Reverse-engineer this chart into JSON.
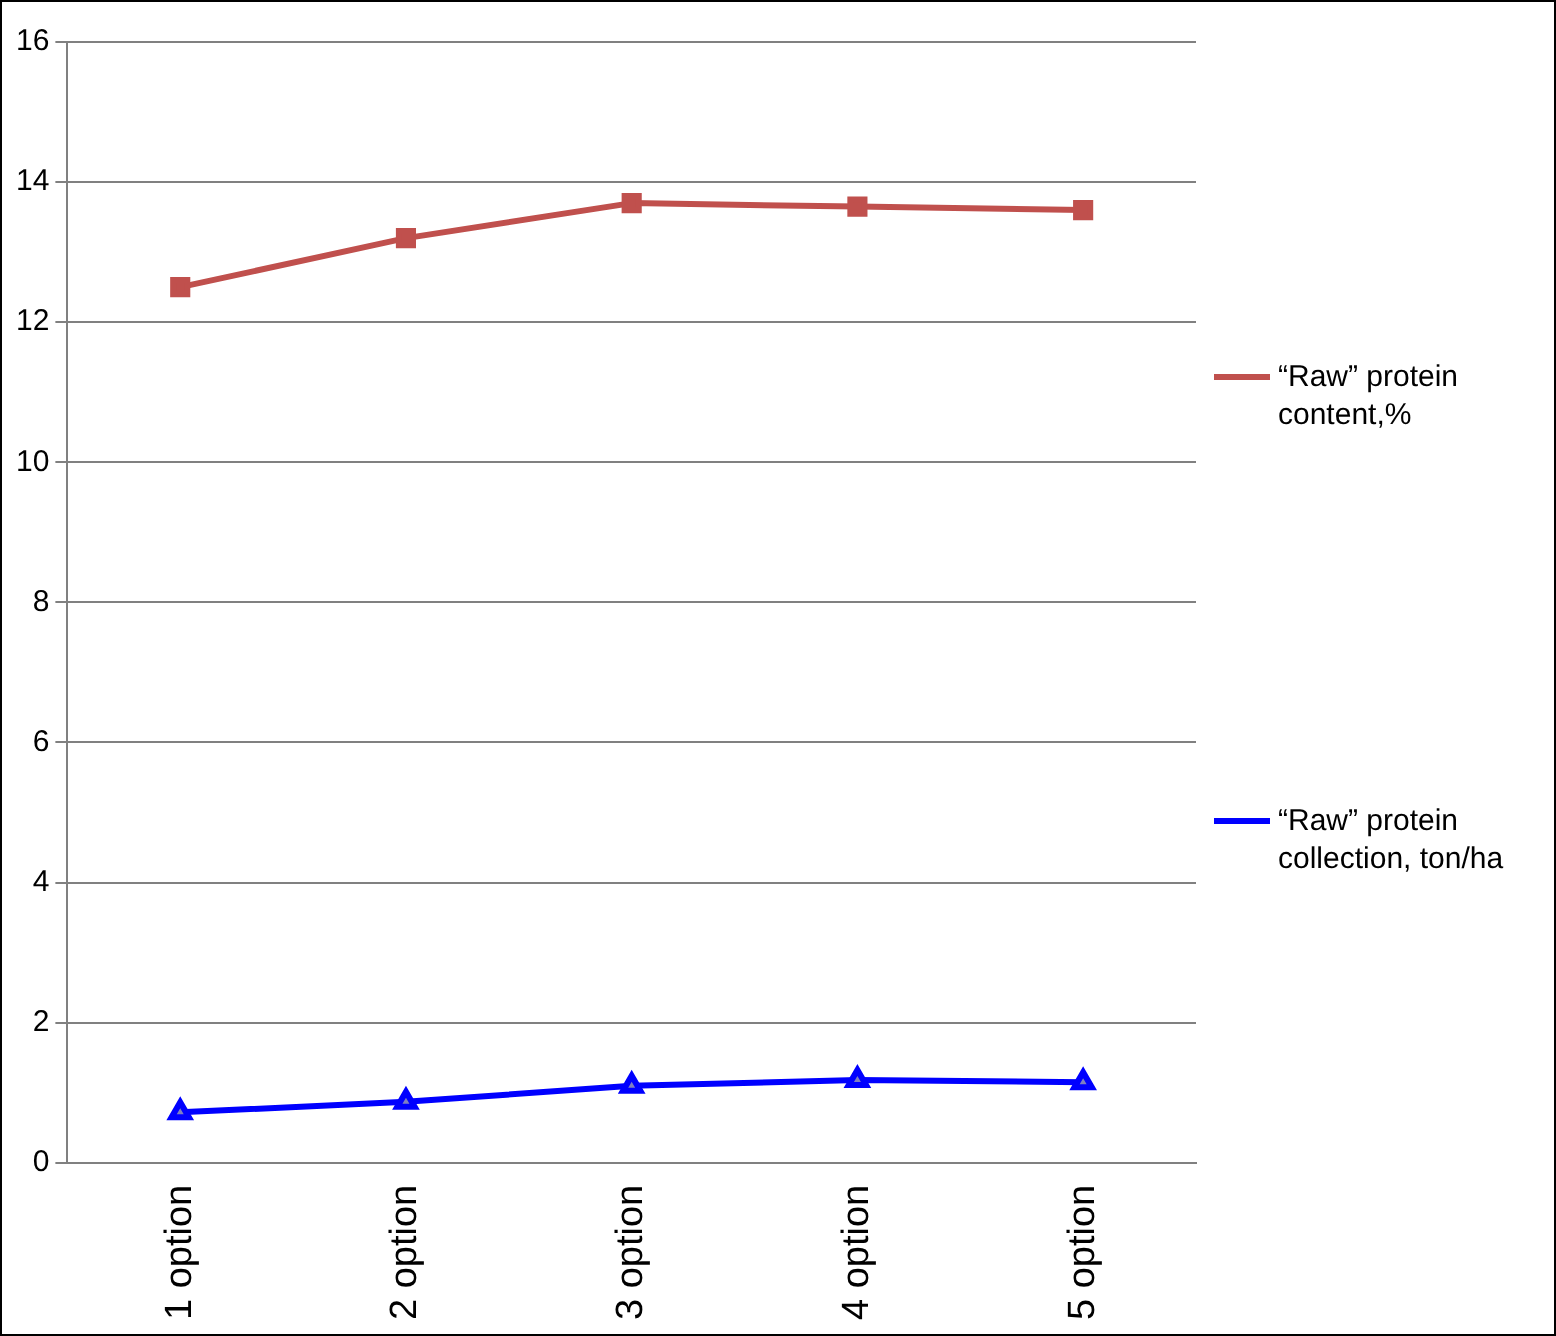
{
  "chart_data": {
    "type": "line",
    "categories": [
      "1 option",
      "2 option",
      "3 option",
      "4 option",
      "5 option"
    ],
    "series": [
      {
        "name": "“Raw” protein content,%",
        "color": "#c0504d",
        "marker": "square",
        "values": [
          12.5,
          13.2,
          13.7,
          13.65,
          13.6
        ]
      },
      {
        "name": "“Raw” protein collection, ton/ha",
        "color": "#0000ff",
        "marker": "triangle",
        "values": [
          0.72,
          0.87,
          1.1,
          1.18,
          1.15
        ]
      }
    ],
    "ylim": [
      0,
      16
    ],
    "yticks": [
      0,
      2,
      4,
      6,
      8,
      10,
      12,
      14,
      16
    ],
    "grid": "y",
    "legend": "right"
  }
}
